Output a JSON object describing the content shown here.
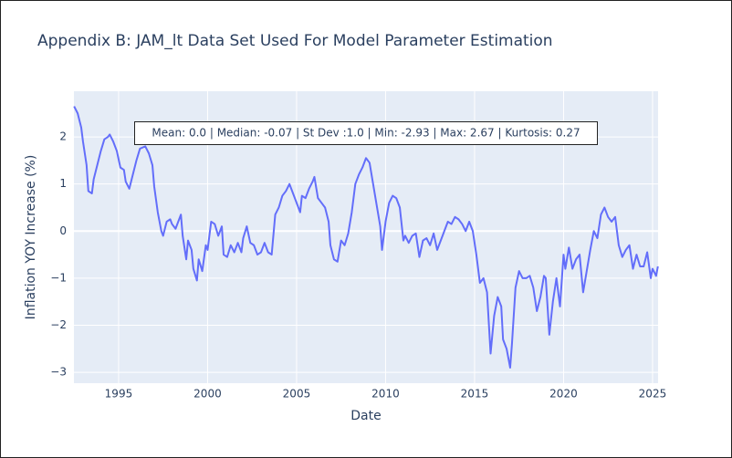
{
  "chart_data": {
    "type": "line",
    "title": "Appendix B: JAM_lt Data Set Used For Model Parameter Estimation",
    "x_label": "Date",
    "y_label": "Inflation YOY Increase (%)",
    "annotation": "Mean: 0.0 | Median: -0.07 | St Dev :1.0 | Min: -2.93 | Max: 2.67 | Kurtosis: 0.27",
    "x": [
      1992.5,
      1992.7,
      1992.9,
      1993.0,
      1993.2,
      1993.3,
      1993.5,
      1993.6,
      1993.8,
      1994.0,
      1994.2,
      1994.4,
      1994.5,
      1994.7,
      1994.9,
      1995.1,
      1995.3,
      1995.4,
      1995.6,
      1995.8,
      1996.0,
      1996.2,
      1996.5,
      1996.7,
      1996.9,
      1997.0,
      1997.2,
      1997.4,
      1997.5,
      1997.7,
      1997.9,
      1998.0,
      1998.2,
      1998.4,
      1998.5,
      1998.6,
      1998.8,
      1998.9,
      1999.1,
      1999.2,
      1999.4,
      1999.5,
      1999.7,
      1999.9,
      2000.0,
      2000.2,
      2000.4,
      2000.6,
      2000.8,
      2000.9,
      2001.1,
      2001.3,
      2001.5,
      2001.7,
      2001.9,
      2002.0,
      2002.2,
      2002.4,
      2002.6,
      2002.8,
      2003.0,
      2003.2,
      2003.4,
      2003.6,
      2003.8,
      2004.0,
      2004.2,
      2004.4,
      2004.6,
      2004.8,
      2005.0,
      2005.2,
      2005.3,
      2005.5,
      2005.7,
      2005.9,
      2006.0,
      2006.2,
      2006.4,
      2006.6,
      2006.8,
      2006.9,
      2007.1,
      2007.3,
      2007.5,
      2007.7,
      2007.9,
      2008.1,
      2008.3,
      2008.5,
      2008.7,
      2008.9,
      2009.1,
      2009.3,
      2009.5,
      2009.7,
      2009.8,
      2010.0,
      2010.2,
      2010.4,
      2010.6,
      2010.8,
      2011.0,
      2011.1,
      2011.3,
      2011.5,
      2011.7,
      2011.9,
      2012.1,
      2012.3,
      2012.5,
      2012.7,
      2012.9,
      2013.1,
      2013.3,
      2013.5,
      2013.7,
      2013.9,
      2014.1,
      2014.3,
      2014.5,
      2014.7,
      2014.9,
      2015.1,
      2015.3,
      2015.5,
      2015.7,
      2015.9,
      2016.1,
      2016.3,
      2016.5,
      2016.6,
      2016.8,
      2017.0,
      2017.1,
      2017.3,
      2017.5,
      2017.7,
      2017.9,
      2018.1,
      2018.3,
      2018.5,
      2018.7,
      2018.9,
      2019.0,
      2019.2,
      2019.4,
      2019.6,
      2019.8,
      2020.0,
      2020.1,
      2020.3,
      2020.5,
      2020.7,
      2020.9,
      2021.1,
      2021.3,
      2021.5,
      2021.7,
      2021.9,
      2022.1,
      2022.3,
      2022.5,
      2022.7,
      2022.9,
      2023.1,
      2023.3,
      2023.5,
      2023.7,
      2023.9,
      2024.1,
      2024.3,
      2024.5,
      2024.7,
      2024.9,
      2025.0,
      2025.2,
      2025.3
    ],
    "series": [
      {
        "color": "#636efa",
        "values": [
          2.65,
          2.5,
          2.2,
          1.9,
          1.4,
          0.85,
          0.8,
          1.1,
          1.4,
          1.7,
          1.95,
          2.0,
          2.05,
          1.9,
          1.7,
          1.35,
          1.3,
          1.05,
          0.9,
          1.2,
          1.5,
          1.75,
          1.8,
          1.65,
          1.4,
          0.95,
          0.4,
          0.0,
          -0.1,
          0.2,
          0.25,
          0.15,
          0.05,
          0.25,
          0.35,
          -0.1,
          -0.6,
          -0.2,
          -0.4,
          -0.8,
          -1.05,
          -0.6,
          -0.85,
          -0.3,
          -0.4,
          0.2,
          0.15,
          -0.1,
          0.1,
          -0.5,
          -0.55,
          -0.3,
          -0.45,
          -0.25,
          -0.45,
          -0.15,
          0.1,
          -0.25,
          -0.3,
          -0.5,
          -0.45,
          -0.25,
          -0.45,
          -0.5,
          0.35,
          0.5,
          0.75,
          0.85,
          1.0,
          0.8,
          0.6,
          0.4,
          0.75,
          0.7,
          0.9,
          1.05,
          1.15,
          0.7,
          0.6,
          0.5,
          0.2,
          -0.3,
          -0.6,
          -0.65,
          -0.2,
          -0.3,
          -0.05,
          0.4,
          1.0,
          1.2,
          1.35,
          1.55,
          1.45,
          1.0,
          0.55,
          0.1,
          -0.4,
          0.2,
          0.6,
          0.75,
          0.7,
          0.5,
          -0.2,
          -0.1,
          -0.25,
          -0.1,
          -0.05,
          -0.55,
          -0.2,
          -0.15,
          -0.3,
          -0.05,
          -0.4,
          -0.2,
          0.0,
          0.2,
          0.15,
          0.3,
          0.25,
          0.15,
          0.0,
          0.2,
          0.0,
          -0.5,
          -1.1,
          -1.0,
          -1.3,
          -2.6,
          -1.8,
          -1.4,
          -1.6,
          -2.3,
          -2.5,
          -2.9,
          -2.4,
          -1.2,
          -0.85,
          -1.0,
          -1.0,
          -0.95,
          -1.2,
          -1.7,
          -1.4,
          -0.95,
          -1.0,
          -2.2,
          -1.5,
          -1.0,
          -1.6,
          -0.5,
          -0.8,
          -0.35,
          -0.8,
          -0.6,
          -0.5,
          -1.3,
          -0.85,
          -0.4,
          0.0,
          -0.15,
          0.35,
          0.5,
          0.3,
          0.2,
          0.3,
          -0.3,
          -0.55,
          -0.4,
          -0.3,
          -0.8,
          -0.5,
          -0.75,
          -0.75,
          -0.45,
          -1.0,
          -0.8,
          -0.95,
          -0.75
        ]
      }
    ],
    "xlim": [
      1992.49,
      2025.31
    ],
    "xticks": [
      1995,
      2000,
      2005,
      2010,
      2015,
      2020,
      2025
    ],
    "ylim": [
      -3.23,
      2.97
    ],
    "yticks": [
      {
        "value": -3,
        "label": "−3"
      },
      {
        "value": -2,
        "label": "−2"
      },
      {
        "value": -1,
        "label": "−1"
      },
      0,
      1,
      2
    ],
    "grid": true
  }
}
